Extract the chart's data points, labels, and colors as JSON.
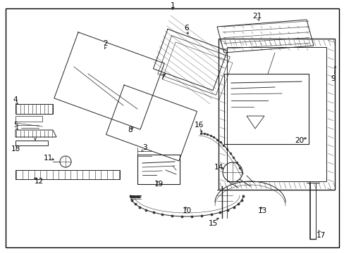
{
  "bg_color": "#ffffff",
  "border_color": "#000000",
  "line_color": "#222222",
  "lw": 0.7,
  "fig_w": 4.89,
  "fig_h": 3.6,
  "dpi": 100
}
